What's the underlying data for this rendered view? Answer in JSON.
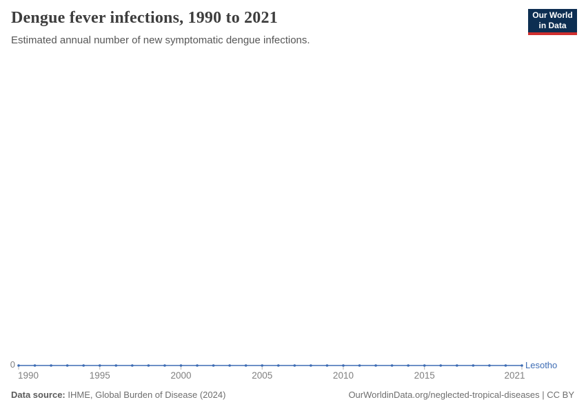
{
  "header": {
    "title": "Dengue fever infections, 1990 to 2021",
    "subtitle": "Estimated annual number of new symptomatic dengue infections.",
    "logo": {
      "line1": "Our World",
      "line2": "in Data",
      "bg_color": "#0d2e52",
      "stripe_color": "#d02f2f"
    }
  },
  "chart_data": {
    "type": "line",
    "title": "Dengue fever infections, 1990 to 2021",
    "xlabel": "",
    "ylabel": "",
    "xlim": [
      1990,
      2021
    ],
    "grid": false,
    "legend_position": "end-of-line",
    "x_ticks": [
      1990,
      1995,
      2000,
      2005,
      2010,
      2015,
      2021
    ],
    "y_ticks": [
      0
    ],
    "y_tick_labels": [
      "0"
    ],
    "axis_tick_color": "#b3b3b3",
    "x": [
      1990,
      1991,
      1992,
      1993,
      1994,
      1995,
      1996,
      1997,
      1998,
      1999,
      2000,
      2001,
      2002,
      2003,
      2004,
      2005,
      2006,
      2007,
      2008,
      2009,
      2010,
      2011,
      2012,
      2013,
      2014,
      2015,
      2016,
      2017,
      2018,
      2019,
      2020,
      2021
    ],
    "series": [
      {
        "name": "Lesotho",
        "color": "#3d6cb4",
        "values": [
          0,
          0,
          0,
          0,
          0,
          0,
          0,
          0,
          0,
          0,
          0,
          0,
          0,
          0,
          0,
          0,
          0,
          0,
          0,
          0,
          0,
          0,
          0,
          0,
          0,
          0,
          0,
          0,
          0,
          0,
          0,
          0
        ]
      }
    ]
  },
  "footer": {
    "datasource_label": "Data source:",
    "datasource_value": " IHME, Global Burden of Disease (2024)",
    "credit": "OurWorldinData.org/neglected-tropical-diseases | CC BY"
  }
}
